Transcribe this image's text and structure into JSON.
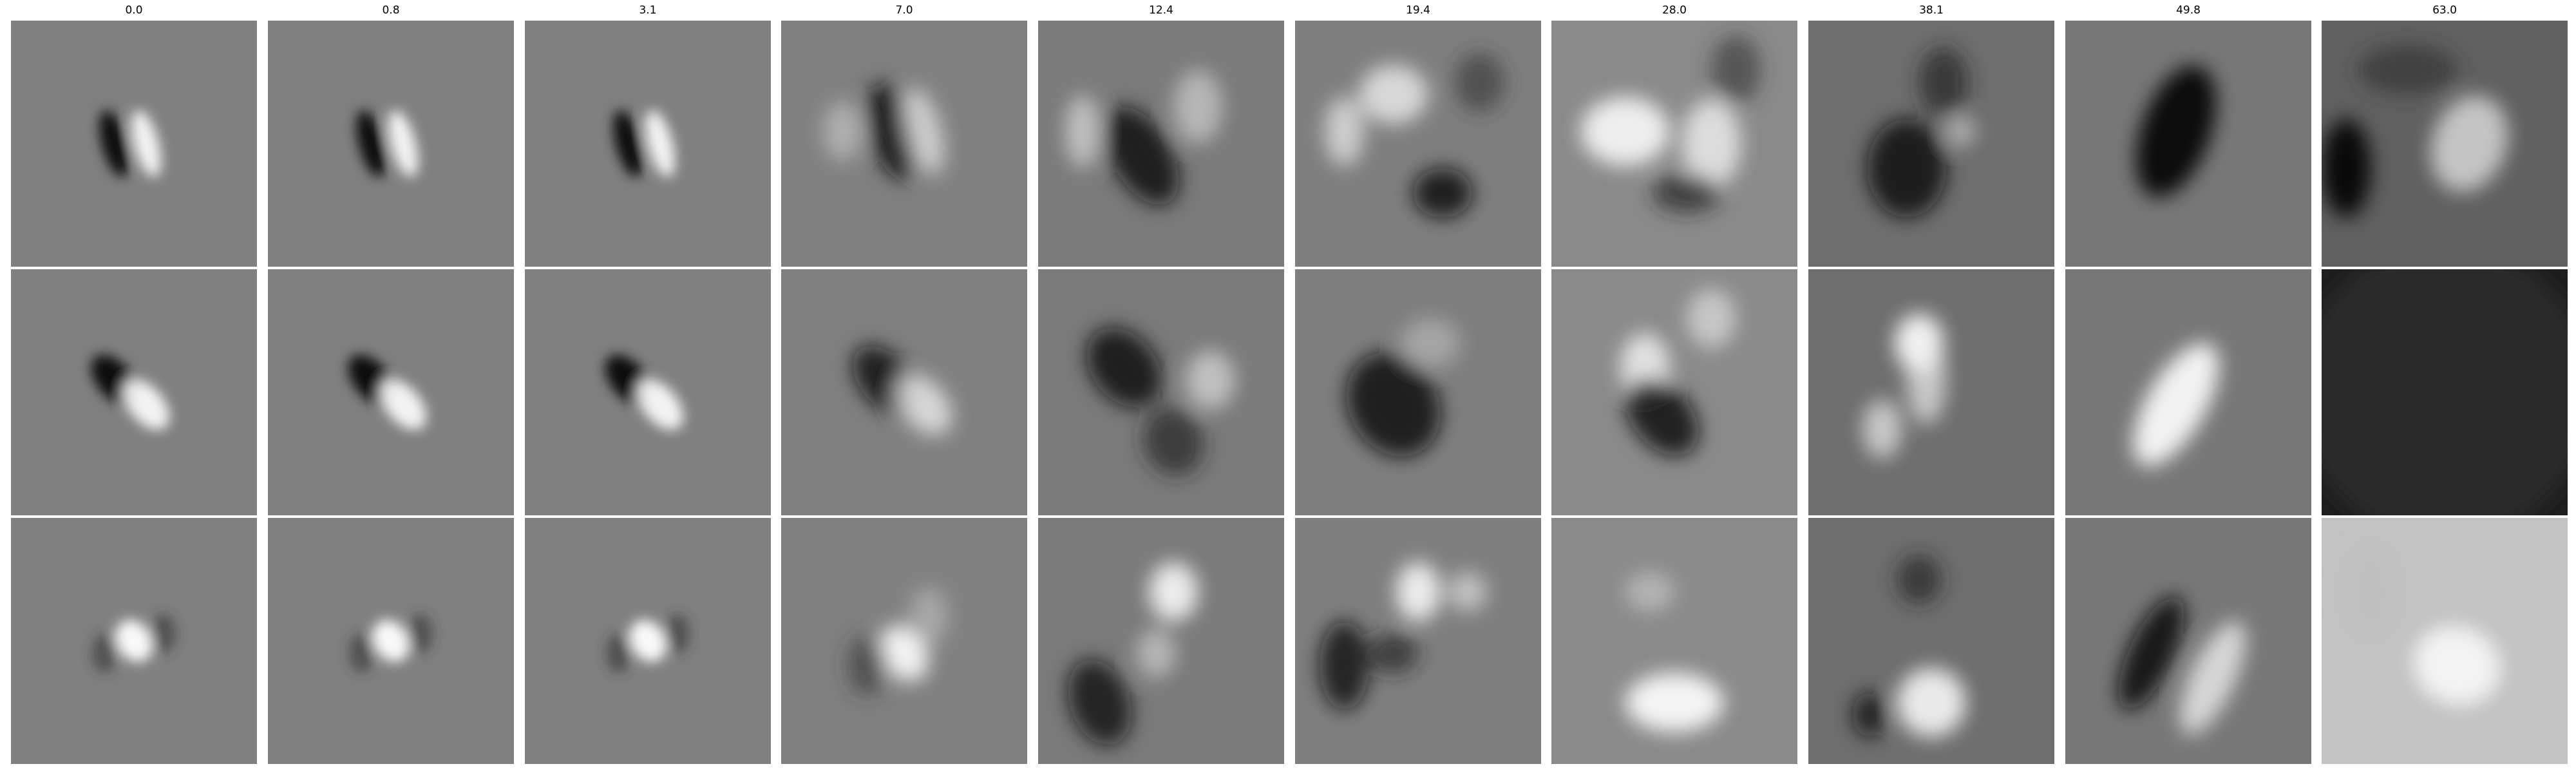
{
  "column_titles": [
    "0.0",
    "0.8",
    "3.1",
    "7.0",
    "12.4",
    "19.4",
    "28.0",
    "38.1",
    "49.8",
    "63.0"
  ],
  "rows": 3,
  "background_gray": [
    "#848484",
    "#818181",
    "#7f7f7f"
  ],
  "colors": {
    "figure_background": "#ffffff"
  }
}
